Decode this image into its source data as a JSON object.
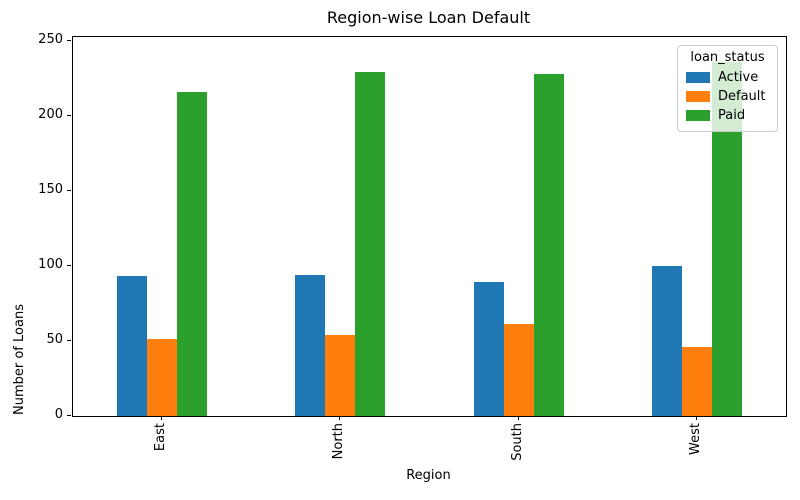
{
  "chart_data": {
    "type": "bar",
    "title": "Region-wise Loan Default",
    "xlabel": "Region",
    "ylabel": "Number of Loans",
    "categories": [
      "East",
      "North",
      "South",
      "West"
    ],
    "series": [
      {
        "name": "Active",
        "color": "#1f77b4",
        "values": [
          93,
          94,
          89,
          100
        ]
      },
      {
        "name": "Default",
        "color": "#ff7f0e",
        "values": [
          51,
          54,
          61,
          46
        ]
      },
      {
        "name": "Paid",
        "color": "#2ca02c",
        "values": [
          216,
          229,
          228,
          236
        ]
      }
    ],
    "legend": {
      "title": "loan_status",
      "position": "upper right"
    },
    "yticks": [
      0,
      50,
      100,
      150,
      200,
      250
    ],
    "ylim": [
      0,
      252.5
    ],
    "xtick_rotation": 90,
    "grid": false
  },
  "colors": {
    "background": "#ffffff",
    "text": "#000000",
    "spine": "#000000",
    "legend_border": "#cccccc"
  }
}
